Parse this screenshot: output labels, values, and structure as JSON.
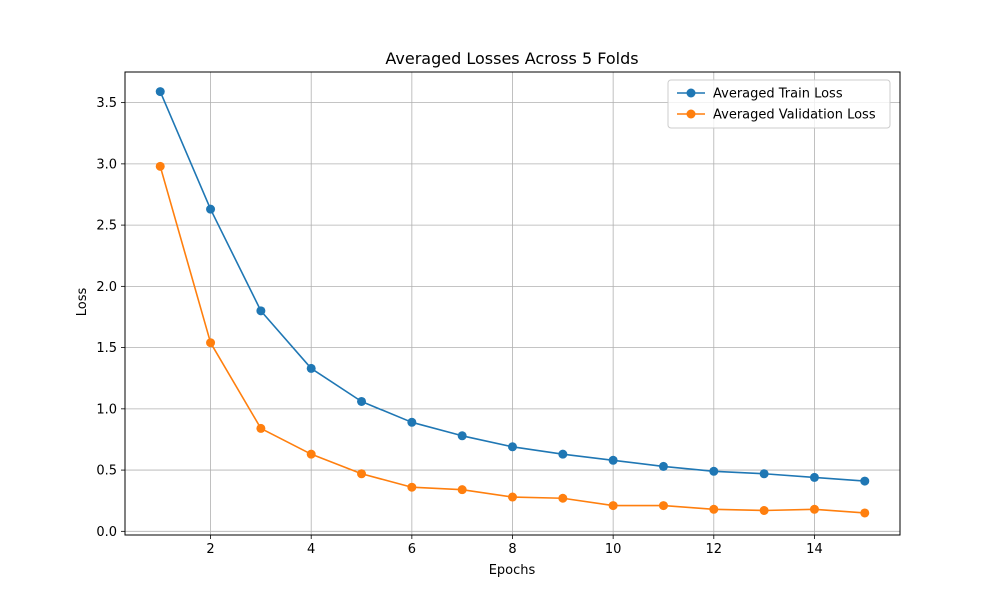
{
  "chart_data": {
    "type": "line",
    "title": "Averaged Losses Across 5 Folds",
    "xlabel": "Epochs",
    "ylabel": "Loss",
    "xlim": [
      0.3,
      15.7
    ],
    "ylim": [
      -0.03,
      3.75
    ],
    "xticks": [
      2,
      4,
      6,
      8,
      10,
      12,
      14
    ],
    "yticks": [
      0.0,
      0.5,
      1.0,
      1.5,
      2.0,
      2.5,
      3.0,
      3.5
    ],
    "grid": true,
    "legend_position": "top-right",
    "x": [
      1,
      2,
      3,
      4,
      5,
      6,
      7,
      8,
      9,
      10,
      11,
      12,
      13,
      14,
      15
    ],
    "series": [
      {
        "name": "Averaged Train Loss",
        "color": "#1f77b4",
        "marker": "circle",
        "values": [
          3.59,
          2.63,
          1.8,
          1.33,
          1.06,
          0.89,
          0.78,
          0.69,
          0.63,
          0.58,
          0.53,
          0.49,
          0.47,
          0.44,
          0.41
        ]
      },
      {
        "name": "Averaged Validation Loss",
        "color": "#ff7f0e",
        "marker": "circle",
        "values": [
          2.98,
          1.54,
          0.84,
          0.63,
          0.47,
          0.36,
          0.34,
          0.28,
          0.27,
          0.21,
          0.21,
          0.18,
          0.17,
          0.18,
          0.15
        ]
      }
    ]
  }
}
